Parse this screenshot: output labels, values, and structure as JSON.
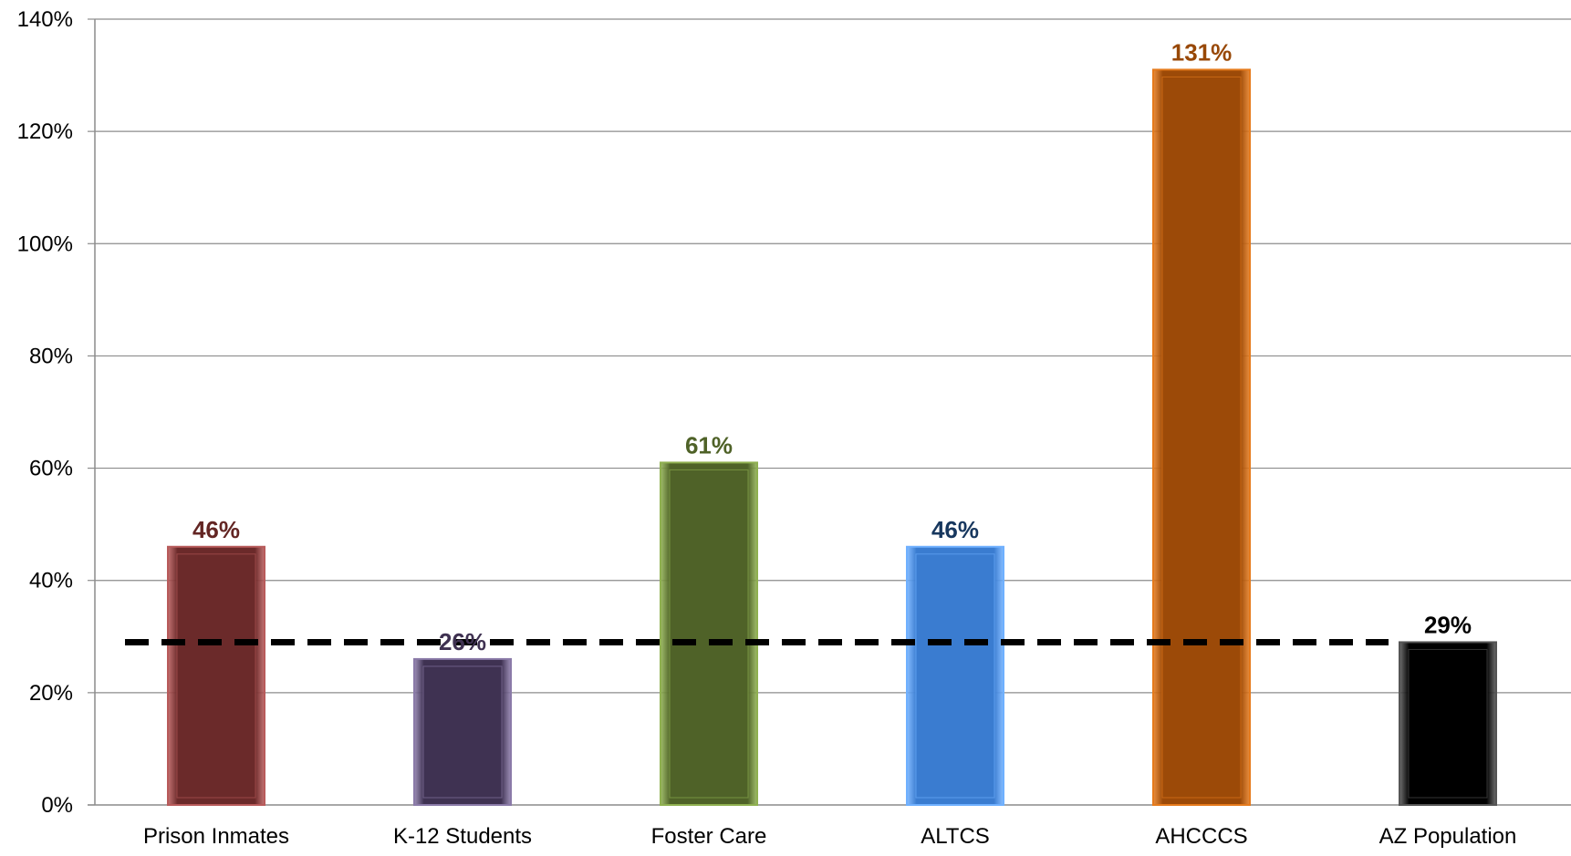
{
  "chart_data": {
    "type": "bar",
    "title": "",
    "xlabel": "",
    "ylabel": "",
    "ylim": [
      0,
      140
    ],
    "y_unit": "%",
    "y_ticks": [
      "0%",
      "20%",
      "40%",
      "60%",
      "80%",
      "100%",
      "120%",
      "140%"
    ],
    "y_tick_values": [
      0,
      20,
      40,
      60,
      80,
      100,
      120,
      140
    ],
    "grid": true,
    "legend": "none",
    "categories": [
      "Prison Inmates",
      "K-12 Students",
      "Foster Care",
      "ALTCS",
      "AHCCCS",
      "AZ Population"
    ],
    "values": [
      46,
      26,
      61,
      46,
      131,
      29
    ],
    "data_labels": [
      "46%",
      "26%",
      "61%",
      "46%",
      "131%",
      "29%"
    ],
    "bar_colors": [
      "#6b2a2a",
      "#3f3252",
      "#4f6228",
      "#3a7cd0",
      "#9c4a08",
      "#000000"
    ],
    "bar_edge_colors": [
      "#b85a5a",
      "#8a7aa8",
      "#8fb050",
      "#6fb0ff",
      "#e57a1c",
      "#555555"
    ],
    "label_colors": [
      "#632523",
      "#3f3151",
      "#4f6228",
      "#17375e",
      "#984807",
      "#000000"
    ],
    "reference_line": {
      "value": 29,
      "style": "dashed",
      "color": "#000000"
    }
  }
}
